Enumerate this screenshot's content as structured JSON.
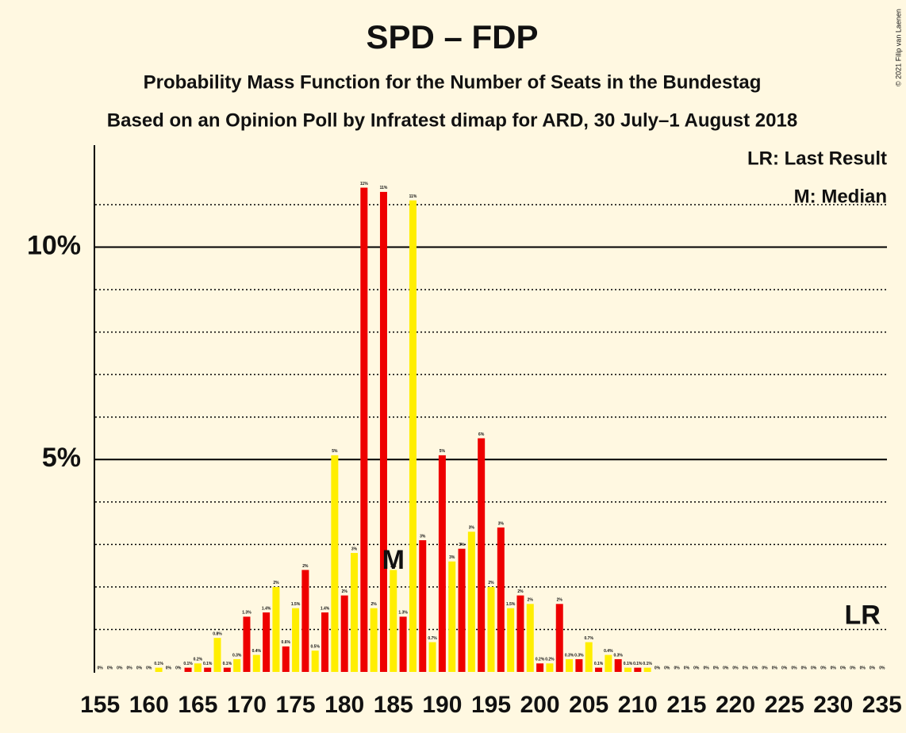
{
  "chart_data": {
    "type": "bar",
    "title": "SPD – FDP",
    "subtitle": "Probability Mass Function for the Number of Seats in the Bundestag",
    "subtitle2": "Based on an Opinion Poll by Infratest dimap for ARD, 30 July–1 August 2018",
    "copyright": "© 2021 Filip van Laenen",
    "legend": [
      "LR: Last Result",
      "M: Median"
    ],
    "categories": [
      "155",
      null,
      null,
      null,
      null,
      "160",
      null,
      null,
      null,
      null,
      "165",
      null,
      null,
      null,
      null,
      "170",
      null,
      null,
      null,
      null,
      "175",
      null,
      null,
      null,
      null,
      "180",
      null,
      null,
      null,
      null,
      "185",
      null,
      null,
      null,
      null,
      "190",
      null,
      null,
      null,
      null,
      "195",
      null,
      null,
      null,
      null,
      "200",
      null,
      null,
      null,
      null,
      "205",
      null,
      null,
      null,
      null,
      "210",
      null,
      null,
      null,
      null,
      "215",
      null,
      null,
      null,
      null,
      "220",
      null,
      null,
      null,
      null,
      "225",
      null,
      null,
      null,
      null,
      "230",
      null,
      null,
      null,
      null,
      "235"
    ],
    "values": [
      0,
      0,
      0,
      0,
      0,
      0,
      0.1,
      0,
      0,
      0.1,
      0.2,
      0.1,
      0.8,
      0.1,
      0.3,
      1.3,
      0.4,
      1.4,
      2.0,
      0.6,
      1.5,
      2.4,
      0.5,
      1.4,
      5.1,
      1.8,
      2.8,
      11.4,
      1.5,
      11.3,
      2.4,
      1.3,
      11.1,
      3.1,
      0.7,
      5.1,
      2.6,
      2.9,
      3.3,
      5.5,
      2.0,
      3.4,
      1.5,
      1.8,
      1.6,
      0.2,
      0.2,
      1.6,
      0.3,
      0.3,
      0.7,
      0.1,
      0.4,
      0.3,
      0.1,
      0.1,
      0.1,
      0,
      0,
      0,
      0,
      0,
      0,
      0,
      0,
      0,
      0,
      0,
      0,
      0,
      0,
      0,
      0,
      0,
      0,
      0,
      0,
      0,
      0,
      0,
      0
    ],
    "value_labels": [
      "0%",
      "0%",
      "0%",
      "0%",
      "0%",
      "0%",
      "0.1%",
      "0%",
      "0%",
      "0.1%",
      "0.2%",
      "0.1%",
      "0.8%",
      "0.1%",
      "0.3%",
      "1.3%",
      "0.4%",
      "1.4%",
      "2%",
      "0.6%",
      "1.5%",
      "2%",
      "0.5%",
      "1.4%",
      "5%",
      "2%",
      "3%",
      "11%",
      "2%",
      "11%",
      "2%",
      "1.3%",
      "11%",
      "3%",
      "0.7%",
      "5%",
      "3%",
      "3%",
      "3%",
      "6%",
      "2%",
      "3%",
      "1.5%",
      "2%",
      "2%",
      "0.2%",
      "0.2%",
      "2%",
      "0.3%",
      "0.3%",
      "0.7%",
      "0.1%",
      "0.4%",
      "0.3%",
      "0.1%",
      "0.1%",
      "0.1%",
      "0%",
      "0%",
      "0%",
      "0%",
      "0%",
      "0%",
      "0%",
      "0%",
      "0%",
      "0%",
      "0%",
      "0%",
      "0%",
      "0%",
      "0%",
      "0%",
      "0%",
      "0%",
      "0%",
      "0%",
      "0%",
      "0%",
      "0%",
      "0%"
    ],
    "colors": [
      "#ffee00",
      "#ee0000"
    ],
    "ylim": [
      0,
      12.4
    ],
    "yticks": [
      {
        "value": 5,
        "label": "5%"
      },
      {
        "value": 10,
        "label": "10%"
      }
    ],
    "minor_grid": [
      1,
      2,
      3,
      4,
      6,
      7,
      8,
      9,
      11
    ],
    "annotations": [
      {
        "text": "M",
        "category_index": 30,
        "value": 2.6
      },
      {
        "text": "LR",
        "category_index": 78,
        "value": 1.3
      }
    ]
  }
}
